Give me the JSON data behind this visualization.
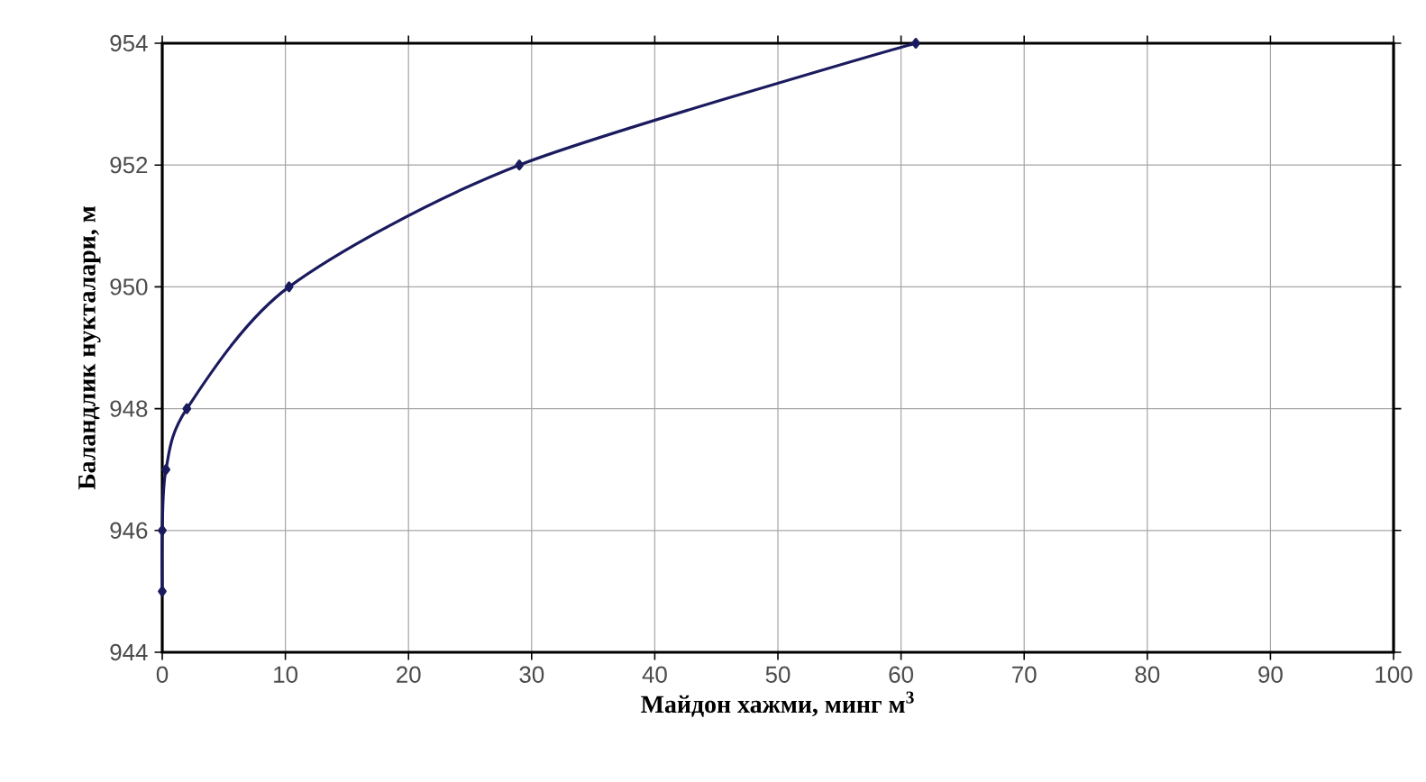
{
  "chart_data": {
    "type": "line",
    "xlabel": "Майдон хажми,   минг м$^{3}$",
    "ylabel": "Баландлик нукталари,  м",
    "series": [
      {
        "color": "#1a1a5e",
        "x": [
          0,
          0,
          0.3,
          2,
          10.3,
          29,
          61.2
        ],
        "values": [
          945,
          946,
          947,
          948,
          950,
          952,
          954
        ]
      }
    ],
    "xlim": [
      0,
      100
    ],
    "xticks": [
      0,
      10,
      20,
      30,
      40,
      50,
      60,
      70,
      80,
      90,
      100
    ],
    "ylim": [
      944,
      954
    ],
    "yticks": [
      944,
      946,
      948,
      950,
      952,
      954
    ],
    "grid": true,
    "marker": "diamond",
    "line_style": "solid"
  }
}
